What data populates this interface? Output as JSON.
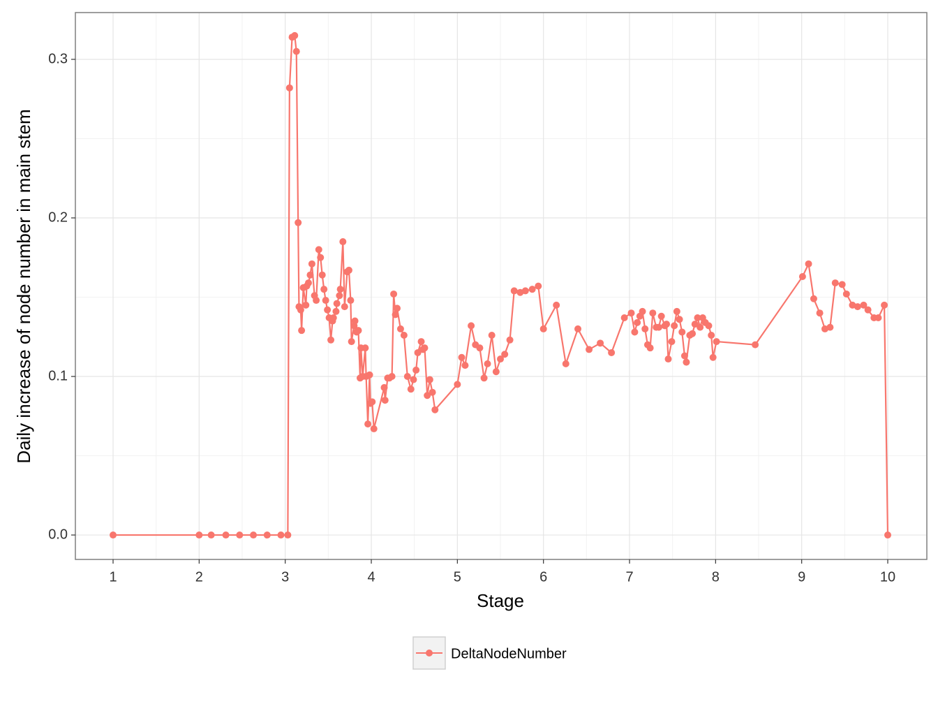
{
  "chart_data": {
    "type": "line",
    "x_label": "Stage",
    "y_label": "Daily increase of node number in main stem",
    "xlim": [
      0.562,
      10.454
    ],
    "ylim": [
      -0.0154,
      0.3295
    ],
    "xticks": [
      1,
      2,
      3,
      4,
      5,
      6,
      7,
      8,
      9,
      10
    ],
    "yticks": [
      {
        "value": 0,
        "label": "0.0"
      },
      0.1,
      0.2,
      0.3
    ],
    "grid": true,
    "minor_grid": true,
    "legend": "bottom",
    "x": [
      1.0,
      2.0,
      2.14,
      2.31,
      2.47,
      2.63,
      2.79,
      2.95,
      3.03,
      3.05,
      3.08,
      3.11,
      3.13,
      3.15,
      3.16,
      3.18,
      3.19,
      3.21,
      3.24,
      3.25,
      3.27,
      3.29,
      3.31,
      3.34,
      3.36,
      3.39,
      3.41,
      3.43,
      3.45,
      3.47,
      3.49,
      3.51,
      3.53,
      3.55,
      3.56,
      3.59,
      3.6,
      3.63,
      3.64,
      3.67,
      3.69,
      3.72,
      3.74,
      3.76,
      3.77,
      3.8,
      3.81,
      3.83,
      3.85,
      3.87,
      3.88,
      3.9,
      3.93,
      3.94,
      3.96,
      3.98,
      3.99,
      4.01,
      4.03,
      4.15,
      4.16,
      4.19,
      4.21,
      4.24,
      4.26,
      4.28,
      4.3,
      4.34,
      4.38,
      4.42,
      4.46,
      4.49,
      4.52,
      4.54,
      4.58,
      4.6,
      4.62,
      4.65,
      4.68,
      4.71,
      4.74,
      5.0,
      5.05,
      5.09,
      5.16,
      5.21,
      5.26,
      5.31,
      5.35,
      5.4,
      5.45,
      5.5,
      5.55,
      5.61,
      5.66,
      5.73,
      5.79,
      5.87,
      5.94,
      6.0,
      6.15,
      6.26,
      6.4,
      6.53,
      6.66,
      6.79,
      6.94,
      7.02,
      7.06,
      7.09,
      7.12,
      7.15,
      7.18,
      7.21,
      7.24,
      7.27,
      7.31,
      7.34,
      7.37,
      7.41,
      7.43,
      7.45,
      7.49,
      7.52,
      7.55,
      7.58,
      7.61,
      7.64,
      7.66,
      7.7,
      7.73,
      7.76,
      7.79,
      7.82,
      7.85,
      7.88,
      7.92,
      7.95,
      7.97,
      8.01,
      8.46,
      9.01,
      9.08,
      9.14,
      9.21,
      9.27,
      9.33,
      9.39,
      9.47,
      9.52,
      9.59,
      9.65,
      9.72,
      9.77,
      9.84,
      9.89,
      9.96,
      10.0
    ],
    "series": [
      {
        "name": "DeltaNodeNumber",
        "color": "#F8766D",
        "values": [
          0,
          0,
          0,
          0,
          0,
          0,
          0,
          0,
          0,
          0.282,
          0.314,
          0.315,
          0.305,
          0.197,
          0.144,
          0.142,
          0.129,
          0.156,
          0.145,
          0.157,
          0.159,
          0.164,
          0.171,
          0.151,
          0.148,
          0.18,
          0.175,
          0.164,
          0.155,
          0.148,
          0.142,
          0.137,
          0.123,
          0.135,
          0.137,
          0.141,
          0.146,
          0.151,
          0.155,
          0.185,
          0.144,
          0.166,
          0.167,
          0.148,
          0.122,
          0.132,
          0.135,
          0.128,
          0.129,
          0.099,
          0.118,
          0.1,
          0.118,
          0.1,
          0.07,
          0.101,
          0.083,
          0.084,
          0.067,
          0.093,
          0.085,
          0.099,
          0.099,
          0.1,
          0.152,
          0.139,
          0.143,
          0.13,
          0.126,
          0.1,
          0.092,
          0.098,
          0.104,
          0.115,
          0.122,
          0.117,
          0.118,
          0.088,
          0.098,
          0.09,
          0.079,
          0.095,
          0.112,
          0.107,
          0.132,
          0.12,
          0.118,
          0.099,
          0.108,
          0.126,
          0.103,
          0.111,
          0.114,
          0.123,
          0.154,
          0.153,
          0.154,
          0.155,
          0.157,
          0.13,
          0.145,
          0.108,
          0.13,
          0.117,
          0.121,
          0.115,
          0.137,
          0.14,
          0.128,
          0.134,
          0.138,
          0.141,
          0.13,
          0.12,
          0.118,
          0.14,
          0.131,
          0.131,
          0.138,
          0.132,
          0.133,
          0.111,
          0.122,
          0.132,
          0.141,
          0.136,
          0.128,
          0.113,
          0.109,
          0.126,
          0.127,
          0.133,
          0.137,
          0.131,
          0.137,
          0.134,
          0.132,
          0.126,
          0.112,
          0.122,
          0.12,
          0.163,
          0.171,
          0.149,
          0.14,
          0.13,
          0.131,
          0.159,
          0.158,
          0.152,
          0.145,
          0.144,
          0.145,
          0.142,
          0.137,
          0.137,
          0.145,
          0
        ]
      }
    ]
  }
}
